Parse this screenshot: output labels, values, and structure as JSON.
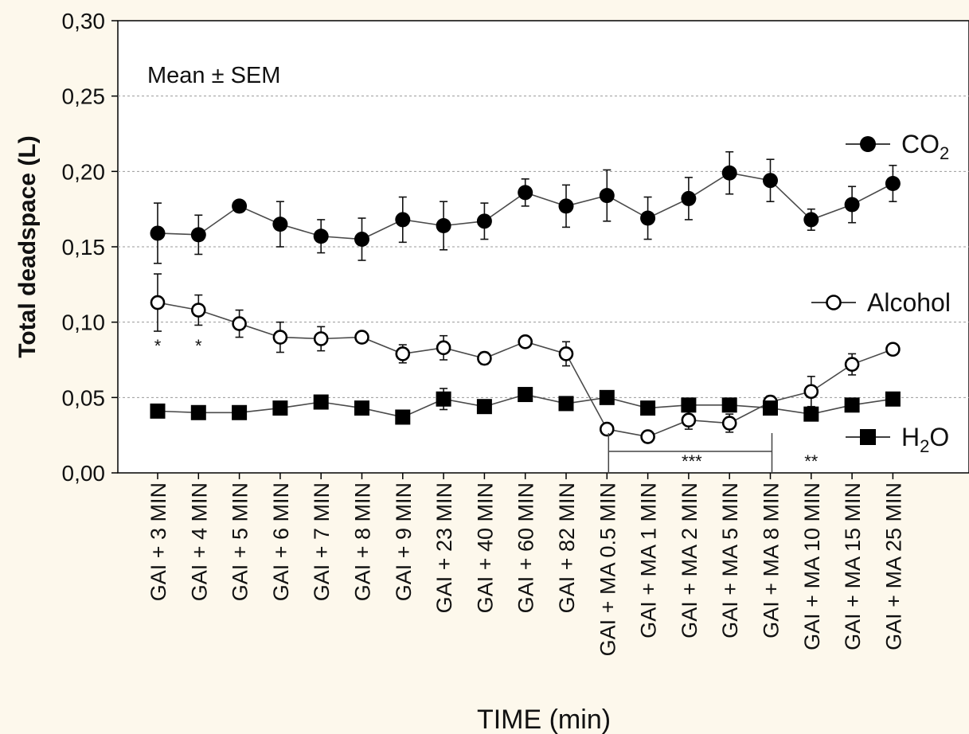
{
  "chart_data": {
    "type": "line",
    "annotation": "Mean ± SEM",
    "xlabel": "TIME (min)",
    "ylabel": "Total deadspace (L)",
    "ylim": [
      0,
      0.3
    ],
    "yticks": [
      "0,00",
      "0,05",
      "0,10",
      "0,15",
      "0,20",
      "0,25",
      "0,30"
    ],
    "grid": "horizontal dashed",
    "legend_placement": "right, next to each series",
    "categories": [
      "GAI + 3 MIN",
      "GAI + 4 MIN",
      "GAI + 5 MIN",
      "GAI + 6 MIN",
      "GAI + 7 MIN",
      "GAI + 8 MIN",
      "GAI + 9 MIN",
      "GAI + 23 MIN",
      "GAI + 40 MIN",
      "GAI + 60 MIN",
      "GAI + 82 MIN",
      "GAI + MA 0.5 MIN",
      "GAI + MA 1 MIN",
      "GAI + MA 2 MIN",
      "GAI + MA 5 MIN",
      "GAI + MA 8 MIN",
      "GAI + MA 10 MIN",
      "GAI + MA 15 MIN",
      "GAI + MA 25 MIN"
    ],
    "series": [
      {
        "name": "CO2",
        "name_main": "CO",
        "name_sub": "2",
        "marker": "filled-circle",
        "values": [
          0.159,
          0.158,
          0.177,
          0.165,
          0.157,
          0.155,
          0.168,
          0.164,
          0.167,
          0.186,
          0.177,
          0.184,
          0.169,
          0.182,
          0.199,
          0.194,
          0.168,
          0.178,
          0.192
        ],
        "sem": [
          0.02,
          0.013,
          0.003,
          0.015,
          0.011,
          0.014,
          0.015,
          0.016,
          0.012,
          0.009,
          0.014,
          0.017,
          0.014,
          0.014,
          0.014,
          0.014,
          0.007,
          0.012,
          0.012
        ]
      },
      {
        "name": "Alcohol",
        "name_main": "Alcohol",
        "name_sub": "",
        "marker": "open-circle",
        "values": [
          0.113,
          0.108,
          0.099,
          0.09,
          0.089,
          0.09,
          0.079,
          0.083,
          0.076,
          0.087,
          0.079,
          0.029,
          0.024,
          0.035,
          0.033,
          0.047,
          0.054,
          0.072,
          0.082
        ],
        "sem": [
          0.019,
          0.01,
          0.009,
          0.01,
          0.008,
          0.003,
          0.006,
          0.008,
          0.004,
          0.003,
          0.008,
          0.003,
          0.003,
          0.006,
          0.006,
          0.004,
          0.01,
          0.007,
          0.003
        ]
      },
      {
        "name": "H2O",
        "name_main": "H",
        "name_sub": "2",
        "name_tail": "O",
        "marker": "filled-square",
        "values": [
          0.041,
          0.04,
          0.04,
          0.043,
          0.047,
          0.043,
          0.037,
          0.049,
          0.044,
          0.052,
          0.046,
          0.05,
          0.043,
          0.045,
          0.045,
          0.043,
          0.039,
          0.045,
          0.049
        ],
        "sem": [
          0.002,
          0.002,
          0.002,
          0.002,
          0.003,
          0.002,
          0.002,
          0.007,
          0.002,
          0.002,
          0.002,
          0.003,
          0.002,
          0.003,
          0.002,
          0.002,
          0.002,
          0.002,
          0.002
        ]
      }
    ],
    "significance": [
      {
        "label": "*",
        "category_index": 0
      },
      {
        "label": "*",
        "category_index": 1
      },
      {
        "label": "**",
        "category_index": 16
      }
    ],
    "bracket": {
      "label": "***",
      "from_index": 11,
      "to_index": 15
    }
  }
}
